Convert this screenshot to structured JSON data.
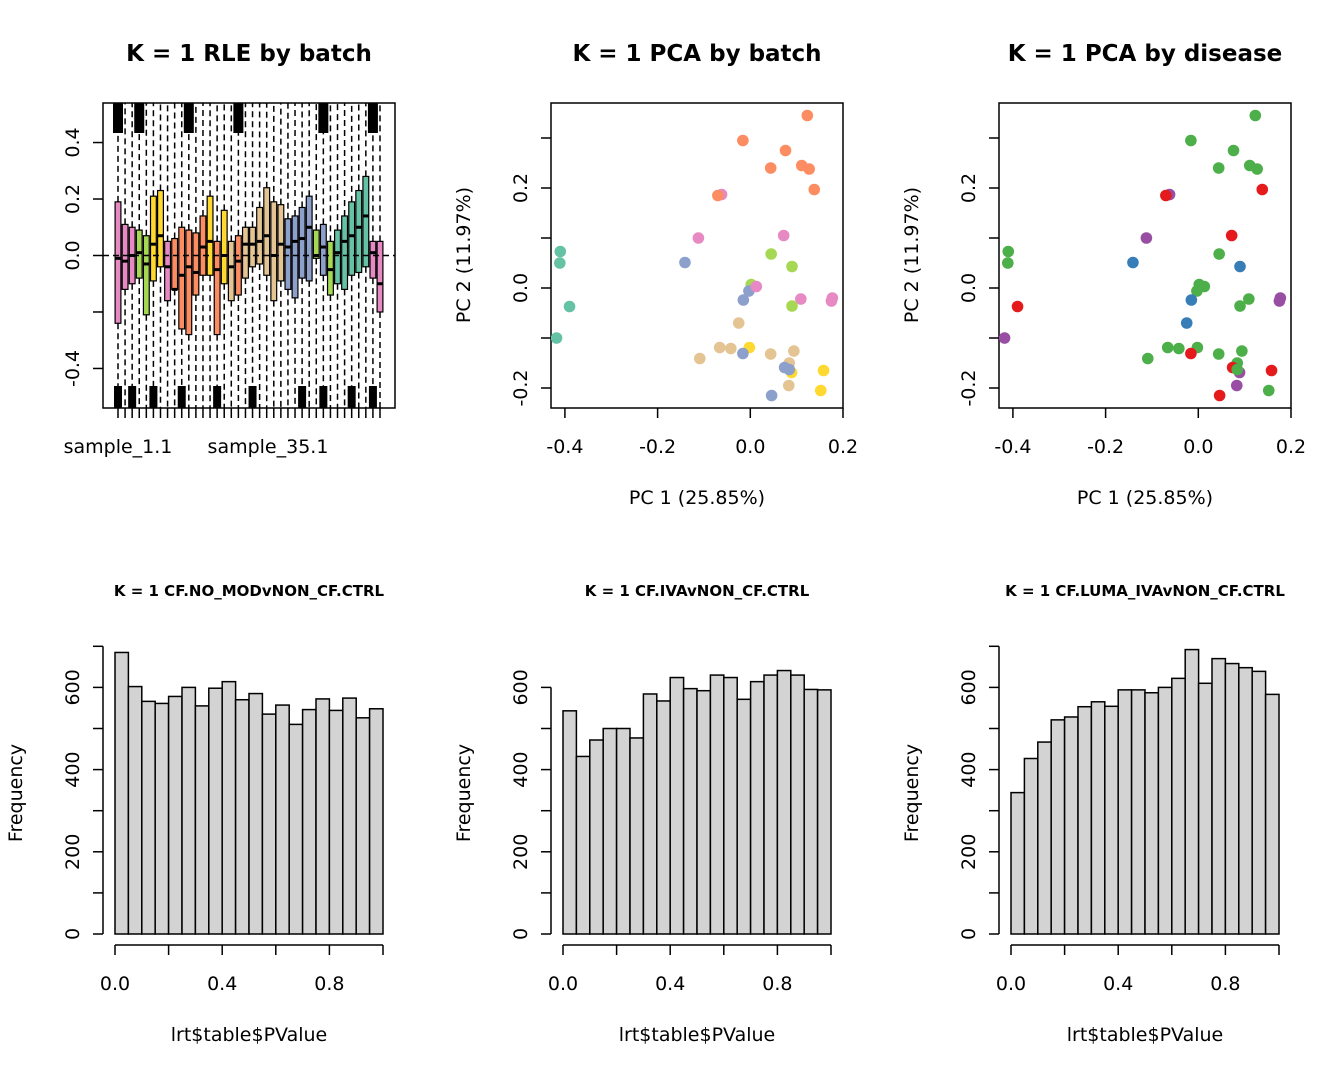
{
  "chart_data": [
    {
      "type": "box",
      "title": "K = 1 RLE by batch",
      "xlabel": "",
      "ylabel": "",
      "ylim": [
        -0.54,
        0.54
      ],
      "yticks": [
        -0.4,
        -0.2,
        0.0,
        0.2,
        0.4
      ],
      "ytick_labels": [
        "-0.4",
        "",
        "0.0",
        "0.2",
        "0.4"
      ],
      "xtick_labels": [
        "sample_1.1",
        "sample_35.1"
      ],
      "reference_line": 0,
      "boxes": [
        {
          "color": "#E78AC3",
          "q1": -0.24,
          "median": -0.01,
          "q3": 0.19
        },
        {
          "color": "#E78AC3",
          "q1": -0.12,
          "median": -0.02,
          "q3": 0.11
        },
        {
          "color": "#E78AC3",
          "q1": -0.1,
          "median": 0.0,
          "q3": 0.1
        },
        {
          "color": "#A6D854",
          "q1": -0.08,
          "median": 0.01,
          "q3": 0.09
        },
        {
          "color": "#A6D854",
          "q1": -0.21,
          "median": -0.03,
          "q3": 0.07
        },
        {
          "color": "#FFD92F",
          "q1": -0.09,
          "median": 0.04,
          "q3": 0.21
        },
        {
          "color": "#FFD92F",
          "q1": -0.04,
          "median": 0.07,
          "q3": 0.23
        },
        {
          "color": "#E78AC3",
          "q1": -0.16,
          "median": -0.04,
          "q3": 0.05
        },
        {
          "color": "#FC8D62",
          "q1": -0.12,
          "median": -0.12,
          "q3": 0.06
        },
        {
          "color": "#FC8D62",
          "q1": -0.26,
          "median": -0.07,
          "q3": 0.1
        },
        {
          "color": "#FC8D62",
          "q1": -0.28,
          "median": -0.04,
          "q3": 0.09
        },
        {
          "color": "#FC8D62",
          "q1": -0.14,
          "median": -0.06,
          "q3": 0.08
        },
        {
          "color": "#FC8D62",
          "q1": -0.07,
          "median": 0.03,
          "q3": 0.14
        },
        {
          "color": "#FFD92F",
          "q1": -0.07,
          "median": 0.05,
          "q3": 0.21
        },
        {
          "color": "#FC8D62",
          "q1": -0.28,
          "median": -0.05,
          "q3": 0.05
        },
        {
          "color": "#FFD92F",
          "q1": -0.1,
          "median": 0.0,
          "q3": 0.16
        },
        {
          "color": "#E5C494",
          "q1": -0.16,
          "median": -0.04,
          "q3": 0.05
        },
        {
          "color": "#FC8D62",
          "q1": -0.14,
          "median": -0.02,
          "q3": 0.07
        },
        {
          "color": "#E5C494",
          "q1": -0.08,
          "median": 0.04,
          "q3": 0.1
        },
        {
          "color": "#E5C494",
          "q1": -0.04,
          "median": 0.04,
          "q3": 0.1
        },
        {
          "color": "#E5C494",
          "q1": -0.03,
          "median": 0.05,
          "q3": 0.17
        },
        {
          "color": "#E5C494",
          "q1": -0.07,
          "median": 0.07,
          "q3": 0.24
        },
        {
          "color": "#E5C494",
          "q1": -0.16,
          "median": 0.0,
          "q3": 0.19
        },
        {
          "color": "#E5C494",
          "q1": -0.09,
          "median": 0.04,
          "q3": 0.18
        },
        {
          "color": "#8DA0CB",
          "q1": -0.12,
          "median": 0.03,
          "q3": 0.13
        },
        {
          "color": "#8DA0CB",
          "q1": -0.15,
          "median": 0.05,
          "q3": 0.14
        },
        {
          "color": "#8DA0CB",
          "q1": -0.08,
          "median": 0.06,
          "q3": 0.17
        },
        {
          "color": "#8DA0CB",
          "q1": -0.09,
          "median": 0.1,
          "q3": 0.21
        },
        {
          "color": "#A6D854",
          "q1": -0.01,
          "median": 0.0,
          "q3": 0.09
        },
        {
          "color": "#8DA0CB",
          "q1": -0.07,
          "median": 0.03,
          "q3": 0.11
        },
        {
          "color": "#A6D854",
          "q1": -0.14,
          "median": -0.05,
          "q3": 0.05
        },
        {
          "color": "#66C2A5",
          "q1": -0.1,
          "median": 0.01,
          "q3": 0.09
        },
        {
          "color": "#66C2A5",
          "q1": -0.12,
          "median": 0.05,
          "q3": 0.14
        },
        {
          "color": "#66C2A5",
          "q1": -0.07,
          "median": 0.07,
          "q3": 0.19
        },
        {
          "color": "#66C2A5",
          "q1": -0.06,
          "median": 0.1,
          "q3": 0.23
        },
        {
          "color": "#66C2A5",
          "q1": -0.04,
          "median": 0.14,
          "q3": 0.28
        },
        {
          "color": "#E78AC3",
          "q1": -0.08,
          "median": 0.01,
          "q3": 0.05
        },
        {
          "color": "#E78AC3",
          "q1": -0.2,
          "median": -0.1,
          "q3": 0.05
        }
      ]
    },
    {
      "type": "scatter",
      "title": "K = 1 PCA by batch",
      "xlabel": "PC 1 (25.85%)",
      "ylabel": "PC 2 (11.97%)",
      "xlim": [
        -0.43,
        0.2
      ],
      "ylim": [
        -0.24,
        0.37
      ],
      "xticks": [
        -0.4,
        -0.2,
        0.0,
        0.2
      ],
      "xtick_labels": [
        "-0.4",
        "-0.2",
        "0.0",
        "0.2"
      ],
      "yticks": [
        -0.2,
        -0.1,
        0.0,
        0.1,
        0.2,
        0.3
      ],
      "ytick_labels": [
        "-0.2",
        "",
        "0.0",
        "",
        "0.2",
        ""
      ],
      "points": [
        {
          "x": 0.123,
          "y": 0.345,
          "color": "#FC8D62"
        },
        {
          "x": -0.016,
          "y": 0.295,
          "color": "#FC8D62"
        },
        {
          "x": 0.076,
          "y": 0.275,
          "color": "#FC8D62"
        },
        {
          "x": 0.111,
          "y": 0.245,
          "color": "#FC8D62"
        },
        {
          "x": 0.044,
          "y": 0.24,
          "color": "#FC8D62"
        },
        {
          "x": 0.127,
          "y": 0.238,
          "color": "#FC8D62"
        },
        {
          "x": 0.138,
          "y": 0.197,
          "color": "#FC8D62"
        },
        {
          "x": -0.062,
          "y": 0.187,
          "color": "#E78AC3"
        },
        {
          "x": -0.07,
          "y": 0.185,
          "color": "#FC8D62"
        },
        {
          "x": -0.112,
          "y": 0.1,
          "color": "#E78AC3"
        },
        {
          "x": 0.072,
          "y": 0.105,
          "color": "#E78AC3"
        },
        {
          "x": 0.045,
          "y": 0.068,
          "color": "#A6D854"
        },
        {
          "x": 0.09,
          "y": 0.043,
          "color": "#A6D854"
        },
        {
          "x": -0.141,
          "y": 0.051,
          "color": "#8DA0CB"
        },
        {
          "x": -0.41,
          "y": 0.073,
          "color": "#66C2A5"
        },
        {
          "x": -0.411,
          "y": 0.05,
          "color": "#66C2A5"
        },
        {
          "x": 0.002,
          "y": 0.007,
          "color": "#A6D854"
        },
        {
          "x": -0.003,
          "y": -0.006,
          "color": "#8DA0CB"
        },
        {
          "x": 0.013,
          "y": 0.003,
          "color": "#E78AC3"
        },
        {
          "x": -0.015,
          "y": -0.024,
          "color": "#8DA0CB"
        },
        {
          "x": 0.109,
          "y": -0.022,
          "color": "#E78AC3"
        },
        {
          "x": 0.09,
          "y": -0.036,
          "color": "#A6D854"
        },
        {
          "x": 0.177,
          "y": -0.02,
          "color": "#E78AC3"
        },
        {
          "x": 0.175,
          "y": -0.026,
          "color": "#E78AC3"
        },
        {
          "x": -0.39,
          "y": -0.037,
          "color": "#66C2A5"
        },
        {
          "x": -0.418,
          "y": -0.1,
          "color": "#66C2A5"
        },
        {
          "x": -0.025,
          "y": -0.07,
          "color": "#E5C494"
        },
        {
          "x": -0.066,
          "y": -0.119,
          "color": "#E5C494"
        },
        {
          "x": -0.042,
          "y": -0.121,
          "color": "#E5C494"
        },
        {
          "x": -0.002,
          "y": -0.119,
          "color": "#FFD92F"
        },
        {
          "x": -0.016,
          "y": -0.131,
          "color": "#8DA0CB"
        },
        {
          "x": -0.109,
          "y": -0.141,
          "color": "#E5C494"
        },
        {
          "x": 0.044,
          "y": -0.132,
          "color": "#E5C494"
        },
        {
          "x": 0.094,
          "y": -0.126,
          "color": "#E5C494"
        },
        {
          "x": 0.084,
          "y": -0.15,
          "color": "#E5C494"
        },
        {
          "x": 0.074,
          "y": -0.159,
          "color": "#8DA0CB"
        },
        {
          "x": 0.089,
          "y": -0.169,
          "color": "#FFD92F"
        },
        {
          "x": 0.084,
          "y": -0.163,
          "color": "#8DA0CB"
        },
        {
          "x": 0.158,
          "y": -0.165,
          "color": "#FFD92F"
        },
        {
          "x": 0.083,
          "y": -0.195,
          "color": "#E5C494"
        },
        {
          "x": 0.152,
          "y": -0.205,
          "color": "#FFD92F"
        },
        {
          "x": 0.046,
          "y": -0.215,
          "color": "#8DA0CB"
        }
      ]
    },
    {
      "type": "scatter",
      "title": "K = 1 PCA by disease",
      "xlabel": "PC 1 (25.85%)",
      "ylabel": "PC 2 (11.97%)",
      "xlim": [
        -0.43,
        0.2
      ],
      "ylim": [
        -0.24,
        0.37
      ],
      "xticks": [
        -0.4,
        -0.2,
        0.0,
        0.2
      ],
      "xtick_labels": [
        "-0.4",
        "-0.2",
        "0.0",
        "0.2"
      ],
      "yticks": [
        -0.2,
        -0.1,
        0.0,
        0.1,
        0.2,
        0.3
      ],
      "ytick_labels": [
        "-0.2",
        "",
        "0.0",
        "",
        "0.2",
        ""
      ],
      "points": [
        {
          "x": 0.123,
          "y": 0.345,
          "color": "#4DAF4A"
        },
        {
          "x": -0.016,
          "y": 0.295,
          "color": "#4DAF4A"
        },
        {
          "x": 0.076,
          "y": 0.275,
          "color": "#4DAF4A"
        },
        {
          "x": 0.111,
          "y": 0.245,
          "color": "#4DAF4A"
        },
        {
          "x": 0.044,
          "y": 0.24,
          "color": "#4DAF4A"
        },
        {
          "x": 0.127,
          "y": 0.238,
          "color": "#4DAF4A"
        },
        {
          "x": 0.138,
          "y": 0.197,
          "color": "#E41A1C"
        },
        {
          "x": -0.062,
          "y": 0.187,
          "color": "#984EA3"
        },
        {
          "x": -0.07,
          "y": 0.185,
          "color": "#E41A1C"
        },
        {
          "x": -0.112,
          "y": 0.1,
          "color": "#984EA3"
        },
        {
          "x": 0.072,
          "y": 0.105,
          "color": "#E41A1C"
        },
        {
          "x": 0.045,
          "y": 0.068,
          "color": "#4DAF4A"
        },
        {
          "x": 0.09,
          "y": 0.043,
          "color": "#377EB8"
        },
        {
          "x": -0.141,
          "y": 0.051,
          "color": "#377EB8"
        },
        {
          "x": -0.41,
          "y": 0.073,
          "color": "#4DAF4A"
        },
        {
          "x": -0.411,
          "y": 0.05,
          "color": "#4DAF4A"
        },
        {
          "x": 0.002,
          "y": 0.007,
          "color": "#4DAF4A"
        },
        {
          "x": -0.003,
          "y": -0.006,
          "color": "#4DAF4A"
        },
        {
          "x": 0.013,
          "y": 0.003,
          "color": "#4DAF4A"
        },
        {
          "x": -0.015,
          "y": -0.024,
          "color": "#377EB8"
        },
        {
          "x": 0.109,
          "y": -0.022,
          "color": "#4DAF4A"
        },
        {
          "x": 0.09,
          "y": -0.036,
          "color": "#4DAF4A"
        },
        {
          "x": 0.177,
          "y": -0.02,
          "color": "#984EA3"
        },
        {
          "x": 0.175,
          "y": -0.026,
          "color": "#984EA3"
        },
        {
          "x": -0.39,
          "y": -0.037,
          "color": "#E41A1C"
        },
        {
          "x": -0.418,
          "y": -0.1,
          "color": "#984EA3"
        },
        {
          "x": -0.025,
          "y": -0.07,
          "color": "#377EB8"
        },
        {
          "x": -0.066,
          "y": -0.119,
          "color": "#4DAF4A"
        },
        {
          "x": -0.042,
          "y": -0.121,
          "color": "#4DAF4A"
        },
        {
          "x": -0.002,
          "y": -0.119,
          "color": "#4DAF4A"
        },
        {
          "x": -0.016,
          "y": -0.131,
          "color": "#E41A1C"
        },
        {
          "x": -0.109,
          "y": -0.141,
          "color": "#4DAF4A"
        },
        {
          "x": 0.044,
          "y": -0.132,
          "color": "#4DAF4A"
        },
        {
          "x": 0.094,
          "y": -0.126,
          "color": "#4DAF4A"
        },
        {
          "x": 0.084,
          "y": -0.15,
          "color": "#4DAF4A"
        },
        {
          "x": 0.074,
          "y": -0.159,
          "color": "#E41A1C"
        },
        {
          "x": 0.089,
          "y": -0.169,
          "color": "#984EA3"
        },
        {
          "x": 0.084,
          "y": -0.163,
          "color": "#4DAF4A"
        },
        {
          "x": 0.158,
          "y": -0.165,
          "color": "#E41A1C"
        },
        {
          "x": 0.083,
          "y": -0.195,
          "color": "#984EA3"
        },
        {
          "x": 0.152,
          "y": -0.205,
          "color": "#4DAF4A"
        },
        {
          "x": 0.046,
          "y": -0.215,
          "color": "#E41A1C"
        }
      ]
    },
    {
      "type": "histogram",
      "title": "K = 1 CF.NO_MODvNON_CF.CTRL",
      "xlabel": "lrt$table$PValue",
      "ylabel": "Frequency",
      "bin_width": 0.05,
      "x_range": [
        0,
        1
      ],
      "ylim": [
        0,
        700
      ],
      "xticks": [
        0.0,
        0.2,
        0.4,
        0.6,
        0.8,
        1.0
      ],
      "xtick_labels": [
        "0.0",
        "",
        "0.4",
        "",
        "0.8",
        ""
      ],
      "yticks": [
        0,
        100,
        200,
        300,
        400,
        500,
        600,
        700
      ],
      "ytick_labels": [
        "0",
        "",
        "200",
        "",
        "400",
        "",
        "600",
        ""
      ],
      "bar_color": "#D3D3D3",
      "values": [
        685,
        602,
        566,
        561,
        578,
        600,
        555,
        598,
        614,
        570,
        585,
        535,
        557,
        510,
        546,
        572,
        544,
        574,
        526,
        548
      ]
    },
    {
      "type": "histogram",
      "title": "K = 1 CF.IVAvNON_CF.CTRL",
      "xlabel": "lrt$table$PValue",
      "ylabel": "Frequency",
      "bin_width": 0.05,
      "x_range": [
        0,
        1
      ],
      "ylim": [
        0,
        650
      ],
      "xticks": [
        0.0,
        0.2,
        0.4,
        0.6,
        0.8,
        1.0
      ],
      "xtick_labels": [
        "0.0",
        "",
        "0.4",
        "",
        "0.8",
        ""
      ],
      "yticks": [
        0,
        100,
        200,
        300,
        400,
        500,
        600
      ],
      "ytick_labels": [
        "0",
        "",
        "200",
        "",
        "400",
        "",
        "600"
      ],
      "bar_color": "#D3D3D3",
      "values": [
        543,
        432,
        472,
        500,
        500,
        477,
        584,
        567,
        624,
        597,
        592,
        630,
        624,
        571,
        614,
        630,
        641,
        630,
        595,
        594
      ]
    },
    {
      "type": "histogram",
      "title": "K = 1 CF.LUMA_IVAvNON_CF.CTRL",
      "xlabel": "lrt$table$PValue",
      "ylabel": "Frequency",
      "bin_width": 0.05,
      "x_range": [
        0,
        1
      ],
      "ylim": [
        0,
        700
      ],
      "xticks": [
        0.0,
        0.2,
        0.4,
        0.6,
        0.8,
        1.0
      ],
      "xtick_labels": [
        "0.0",
        "",
        "0.4",
        "",
        "0.8",
        ""
      ],
      "yticks": [
        0,
        100,
        200,
        300,
        400,
        500,
        600,
        700
      ],
      "ytick_labels": [
        "0",
        "",
        "200",
        "",
        "400",
        "",
        "600",
        ""
      ],
      "bar_color": "#D3D3D3",
      "values": [
        344,
        427,
        467,
        521,
        528,
        553,
        565,
        554,
        594,
        594,
        587,
        600,
        622,
        692,
        610,
        670,
        658,
        648,
        639,
        583
      ]
    }
  ]
}
